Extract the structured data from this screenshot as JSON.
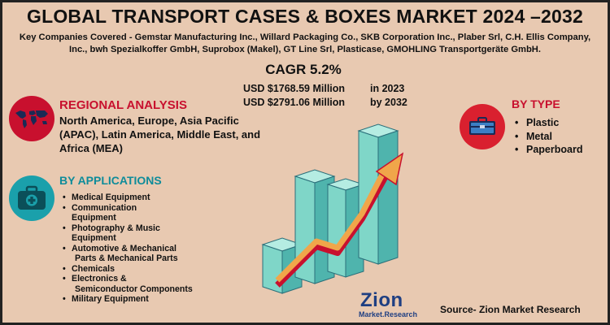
{
  "header": {
    "title": "GLOBAL TRANSPORT CASES & BOXES MARKET 2024 –2032",
    "companies": "Key Companies Covered - Gemstar Manufacturing Inc., Willard Packaging Co., SKB Corporation Inc., Plaber Srl, C.H. Ellis Company, Inc., bwh Spezialkoffer GmbH, Suprobox (Makel), GT Line Srl, Plasticase, GMOHLING Transportgeräte GmbH."
  },
  "stats": {
    "cagr": "CAGR 5.2%",
    "value_2023": "USD $1768.59 Million",
    "year_2023": "in 2023",
    "value_2032": "USD $2791.06 Million",
    "year_2032": "by 2032"
  },
  "regional": {
    "title": "REGIONAL ANALYSIS",
    "text": "North America, Europe, Asia Pacific (APAC), Latin America, Middle East, and Africa (MEA)",
    "icon": "world-map-icon"
  },
  "applications": {
    "title": "BY APPLICATIONS",
    "icon": "medical-case-icon",
    "items": [
      {
        "line1": "Medical Equipment",
        "line2": ""
      },
      {
        "line1": "Communication",
        "line2": "Equipment"
      },
      {
        "line1": "Photography & Music",
        "line2": " Equipment"
      },
      {
        "line1": "Automotive & Mechanical",
        "line2": "Parts & Mechanical Parts"
      },
      {
        "line1": "Chemicals",
        "line2": ""
      },
      {
        "line1": "Electronics &",
        "line2": "Semiconductor Components"
      },
      {
        "line1": "Military Equipment",
        "line2": ""
      }
    ]
  },
  "type": {
    "title": "BY TYPE",
    "icon": "toolbox-icon",
    "items": [
      "Plastic",
      "Metal",
      "Paperboard"
    ]
  },
  "footer": {
    "source": "Source- Zion Market Research",
    "logo_main": "Zion",
    "logo_sub": "Market.Research"
  },
  "colors": {
    "background": "#e8c9b1",
    "accent_red": "#c8102e",
    "accent_teal": "#0e8c9a",
    "bar_fill": "#7fd6c8",
    "arrow": "#f0a64a"
  }
}
